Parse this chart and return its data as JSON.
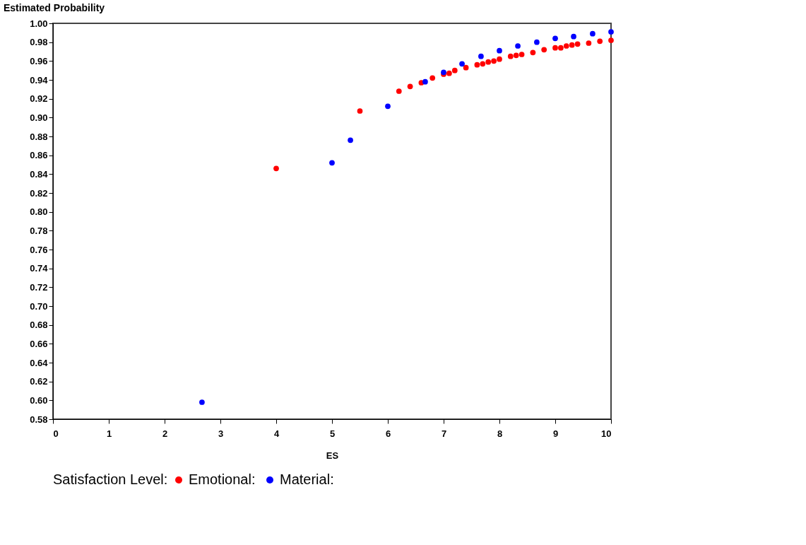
{
  "chart_data": {
    "type": "scatter",
    "ylabel": "Estimated Probability",
    "xlabel": "ES",
    "legend_title": "Satisfaction Level:",
    "legend": "bottom",
    "grid": false,
    "marker": "circle",
    "xlim": [
      0,
      10
    ],
    "xticks": [
      0,
      1,
      2,
      3,
      4,
      5,
      6,
      7,
      8,
      9,
      10
    ],
    "ylim": [
      0.58,
      1.0
    ],
    "yticks": [
      {
        "value": 0.58,
        "label": "0.58"
      },
      {
        "value": 0.6,
        "label": "0.60"
      },
      {
        "value": 0.62,
        "label": "0.62"
      },
      {
        "value": 0.64,
        "label": "0.64"
      },
      {
        "value": 0.66,
        "label": "0.66"
      },
      {
        "value": 0.68,
        "label": "0.68"
      },
      {
        "value": 0.7,
        "label": "0.70"
      },
      {
        "value": 0.72,
        "label": "0.72"
      },
      {
        "value": 0.74,
        "label": "0.74"
      },
      {
        "value": 0.76,
        "label": "0.76"
      },
      {
        "value": 0.78,
        "label": "0.78"
      },
      {
        "value": 0.8,
        "label": "0.80"
      },
      {
        "value": 0.82,
        "label": "0.82"
      },
      {
        "value": 0.84,
        "label": "0.84"
      },
      {
        "value": 0.86,
        "label": "0.86"
      },
      {
        "value": 0.88,
        "label": "0.88"
      },
      {
        "value": 0.9,
        "label": "0.90"
      },
      {
        "value": 0.92,
        "label": "0.92"
      },
      {
        "value": 0.94,
        "label": "0.94"
      },
      {
        "value": 0.96,
        "label": "0.96"
      },
      {
        "value": 0.98,
        "label": "0.98"
      },
      {
        "value": 1.0,
        "label": "1.00"
      }
    ],
    "series": [
      {
        "name": "Emotional:",
        "color": "#ff0000",
        "x": [
          4,
          5.5,
          6.2,
          6.4,
          6.6,
          6.8,
          7.0,
          7.1,
          7.2,
          7.4,
          7.6,
          7.7,
          7.8,
          7.9,
          8.0,
          8.2,
          8.3,
          8.4,
          8.6,
          8.8,
          9.0,
          9.1,
          9.2,
          9.3,
          9.4,
          9.6,
          9.8,
          10
        ],
        "values": [
          0.846,
          0.907,
          0.928,
          0.933,
          0.937,
          0.942,
          0.946,
          0.947,
          0.95,
          0.953,
          0.956,
          0.957,
          0.959,
          0.96,
          0.962,
          0.965,
          0.966,
          0.967,
          0.969,
          0.972,
          0.974,
          0.974,
          0.976,
          0.977,
          0.978,
          0.979,
          0.981,
          0.982
        ]
      },
      {
        "name": "Material:",
        "color": "#0000ff",
        "x": [
          2.67,
          5,
          5.33,
          6,
          6.67,
          7,
          7.33,
          7.67,
          8,
          8.33,
          8.67,
          9,
          9.33,
          9.67,
          10
        ],
        "values": [
          0.598,
          0.852,
          0.876,
          0.912,
          0.938,
          0.948,
          0.957,
          0.965,
          0.971,
          0.976,
          0.98,
          0.984,
          0.986,
          0.989,
          0.991
        ]
      }
    ]
  }
}
